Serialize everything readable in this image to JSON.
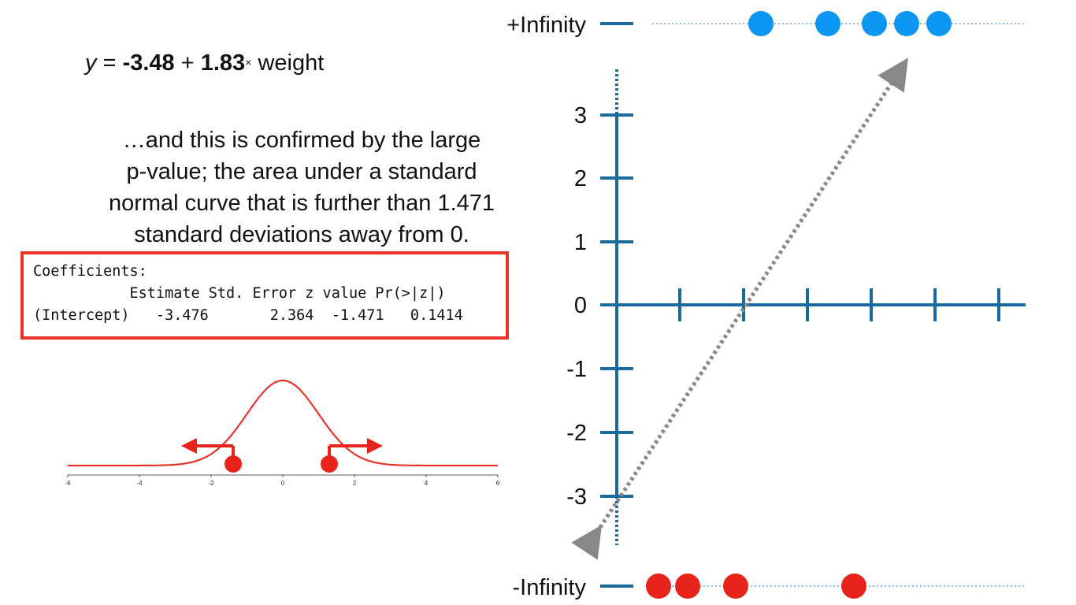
{
  "equation": {
    "y": "y",
    "equals": "=",
    "intercept": "-3.48",
    "plus": "+",
    "slope": "1.83",
    "times": "×",
    "variable": "weight"
  },
  "explanation": {
    "line1": "…and this is confirmed by the large",
    "line2": "p-value; the area under a standard",
    "line3": "normal curve that is further than 1.471",
    "line4": "standard deviations away from 0."
  },
  "coefficients": {
    "header": "Coefficients:",
    "columns": "           Estimate Std. Error z value Pr(>|z|)",
    "row": "(Intercept)   -3.476       2.364  -1.471   0.1414"
  },
  "normal_curve": {
    "x_ticks": [
      "-6",
      "-4",
      "-2",
      "0",
      "2",
      "4",
      "6"
    ],
    "x_range": [
      -6,
      6
    ],
    "z_points": [
      -1.471,
      1.471
    ],
    "color": "#e8352a"
  },
  "log_odds_axis": {
    "y_ticks": [
      "3",
      "2",
      "1",
      "0",
      "-1",
      "-2",
      "-3"
    ],
    "axis_color": "#1a6aa0",
    "fit_line_color": "#888888"
  },
  "infinity_labels": {
    "positive": "+Infinity",
    "negative": "-Infinity"
  },
  "points": {
    "positive_color": "#0a96f2",
    "negative_color": "#e8231c",
    "positive_count": 5,
    "negative_count": 4
  }
}
